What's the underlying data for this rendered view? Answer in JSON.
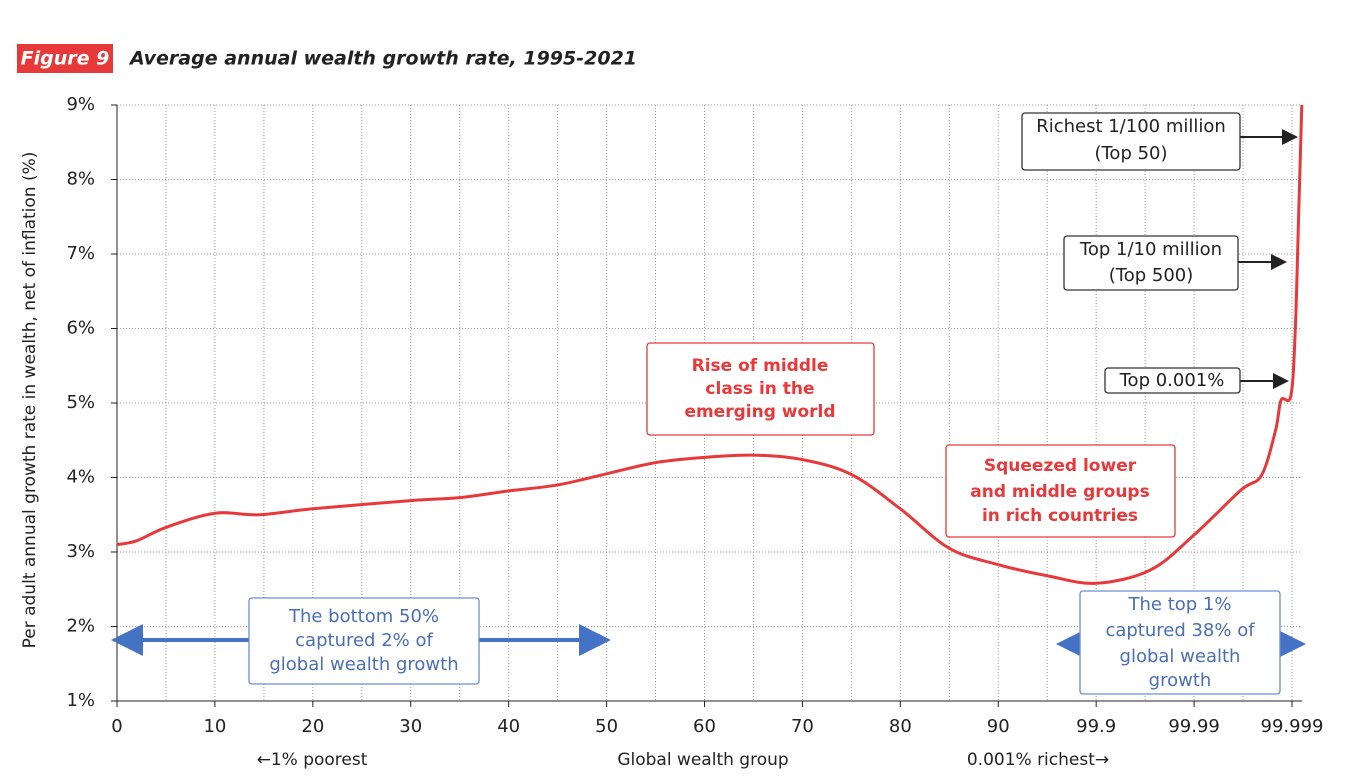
{
  "chart_data": {
    "type": "line",
    "figure_label": "Figure 9",
    "title": "Average annual wealth growth rate, 1995-2021",
    "y_label": "Per adult annual growth rate in wealth, net of inflation (%)",
    "x_label": "Global wealth group",
    "x_label_left": "←1% poorest",
    "x_label_right": "0.001% richest→",
    "xticks": [
      0,
      10,
      20,
      30,
      40,
      50,
      60,
      70,
      80,
      90,
      99.9,
      99.99,
      99.999
    ],
    "ylim": [
      1,
      9
    ],
    "yticks": [
      {
        "value": 1,
        "label": "1%"
      },
      {
        "value": 2,
        "label": "2%"
      },
      {
        "value": 3,
        "label": "3%"
      },
      {
        "value": 4,
        "label": "4%"
      },
      {
        "value": 5,
        "label": "5%"
      },
      {
        "value": 6,
        "label": "6%"
      },
      {
        "value": 7,
        "label": "7%"
      },
      {
        "value": 8,
        "label": "8%"
      },
      {
        "value": 9,
        "label": "9%"
      }
    ],
    "grid": true,
    "x": [
      0,
      2,
      5,
      10,
      14.5,
      20,
      30,
      35,
      40,
      45,
      50,
      55,
      60,
      65,
      70,
      75,
      80,
      85,
      90,
      95,
      99.9,
      99.95,
      99.99,
      99.9943,
      99.9962,
      99.9975,
      99.998,
      99.9989,
      99.9993,
      99.9996,
      99.9999
    ],
    "series": [
      {
        "color": "#e8393a",
        "values": [
          3.1,
          3.15,
          3.33,
          3.52,
          3.5,
          3.58,
          3.69,
          3.73,
          3.82,
          3.9,
          4.05,
          4.2,
          4.27,
          4.3,
          4.24,
          4.04,
          3.58,
          3.05,
          2.83,
          2.68,
          2.58,
          2.76,
          3.23,
          3.83,
          4.03,
          4.64,
          5.04,
          5.1,
          5.98,
          7.46,
          9
        ]
      }
    ],
    "annotations": [
      {
        "lines": [
          "Rise of middle",
          "class in the",
          "emerging world"
        ],
        "style": "red"
      },
      {
        "lines": [
          "Squeezed lower",
          "and middle groups",
          "in rich countries"
        ],
        "style": "red"
      },
      {
        "lines": [
          "The bottom 50%",
          "captured 2% of",
          "global wealth growth"
        ],
        "style": "blue"
      },
      {
        "lines": [
          "The top 1%",
          "captured 38% of",
          "global wealth",
          "growth"
        ],
        "style": "blue"
      },
      {
        "lines": [
          "Richest 1/100 million",
          "(Top 50)"
        ],
        "style": "black"
      },
      {
        "lines": [
          "Top 1/10 million",
          "(Top 500)"
        ],
        "style": "black"
      },
      {
        "lines": [
          "Top 0.001%"
        ],
        "style": "black"
      }
    ]
  }
}
